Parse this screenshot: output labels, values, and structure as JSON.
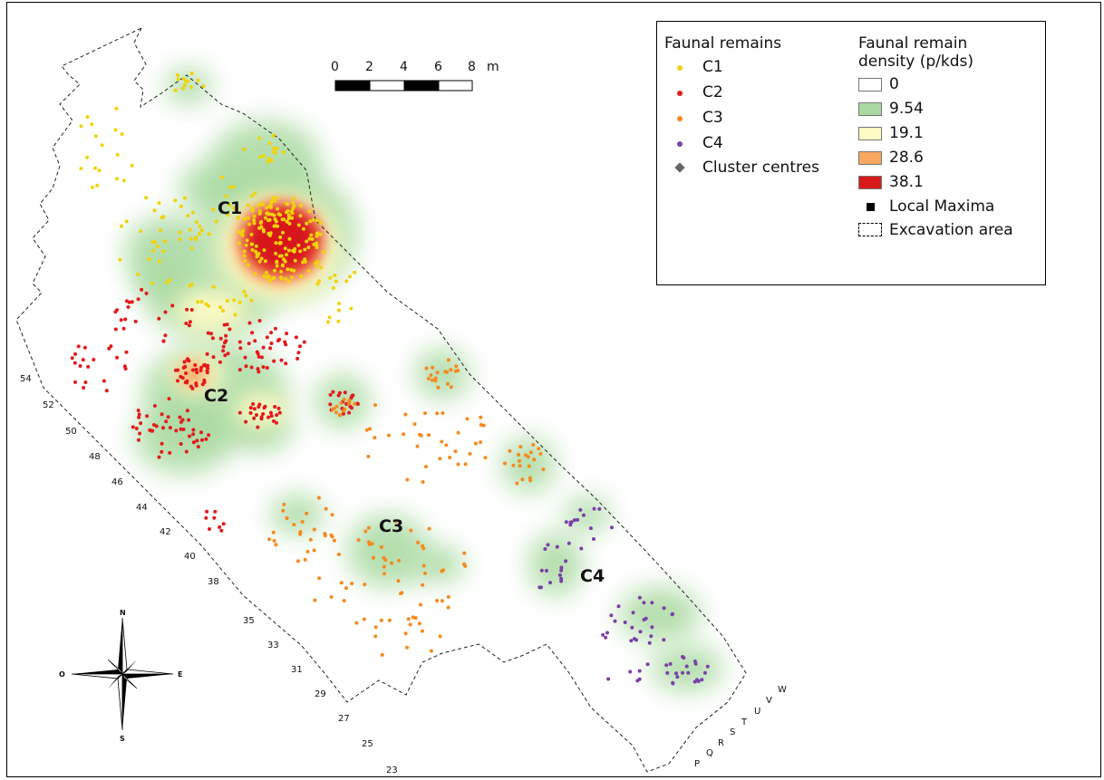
{
  "map": {
    "cluster_labels": [
      "C1",
      "C2",
      "C3",
      "C4"
    ],
    "row_labels": [
      "54",
      "52",
      "50",
      "48",
      "46",
      "44",
      "42",
      "40",
      "38",
      "35",
      "33",
      "31",
      "29",
      "27",
      "25",
      "23"
    ],
    "column_labels": [
      "P",
      "Q",
      "R",
      "S",
      "T",
      "U",
      "V",
      "W"
    ],
    "scale_bar": {
      "ticks": [
        "0",
        "2",
        "4",
        "6",
        "8"
      ],
      "unit": "m"
    },
    "compass": {
      "north": "N",
      "south": "S",
      "east": "E",
      "west": "O"
    },
    "colors": {
      "C1": "#f2d20a",
      "C2": "#e31a1c",
      "C3": "#f7891d",
      "C4": "#7b3fa8"
    }
  },
  "legend": {
    "faunal_title": "Faunal remains",
    "faunal_items": [
      {
        "label": "C1",
        "color": "#f2d20a"
      },
      {
        "label": "C2",
        "color": "#e31a1c"
      },
      {
        "label": "C3",
        "color": "#f7891d"
      },
      {
        "label": "C4",
        "color": "#7b3fa8"
      }
    ],
    "cluster_centres": "Cluster centres",
    "density_title_1": "Faunal remain",
    "density_title_2": "density (p/kds)",
    "density_items": [
      {
        "label": "0",
        "color": "#ffffff"
      },
      {
        "label": "9.54",
        "color": "#a9d9a0"
      },
      {
        "label": "19.1",
        "color": "#fefbc4"
      },
      {
        "label": "28.6",
        "color": "#f9a860"
      },
      {
        "label": "38.1",
        "color": "#d7191c"
      }
    ],
    "local_maxima": "Local Maxima",
    "excavation_area": "Excavation area"
  }
}
